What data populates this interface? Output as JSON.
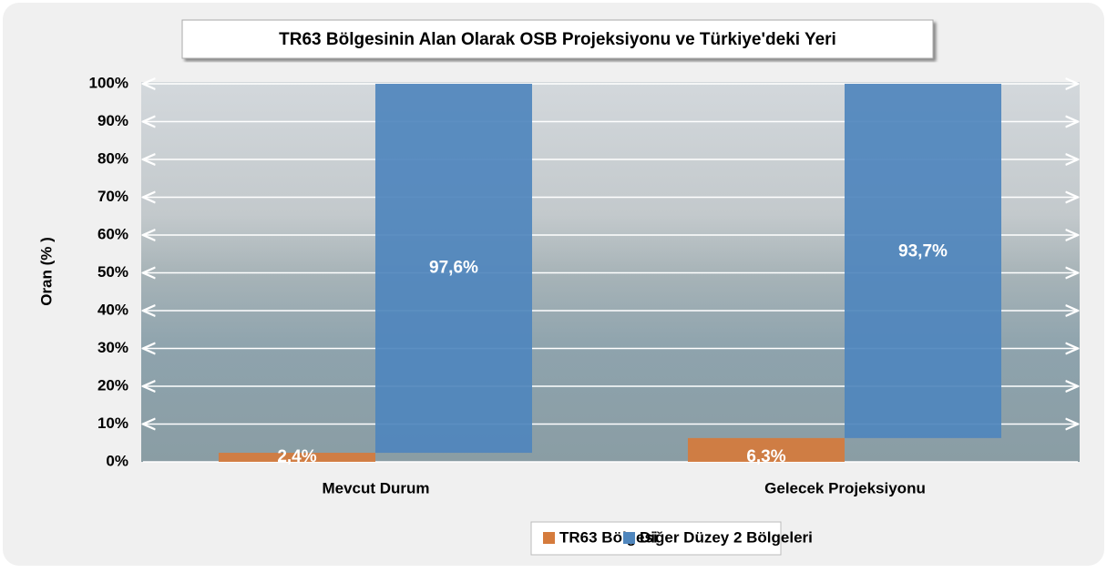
{
  "chart_data": {
    "type": "bar",
    "stacked": true,
    "title": "TR63 Bölgesinin Alan Olarak OSB Projeksiyonu ve Türkiye'deki Yeri",
    "y_label": "Oran (% )",
    "categories": [
      "Mevcut Durum",
      "Gelecek Projeksiyonu"
    ],
    "series": [
      {
        "name": "TR63 Bölgesi",
        "color": "#d57b3c",
        "values": [
          2.4,
          6.3
        ],
        "value_labels": [
          "2,4%",
          "6,3%"
        ]
      },
      {
        "name": "Diğer Düzey 2 Bölgeleri",
        "color": "#4f86bd",
        "values": [
          97.6,
          93.7
        ],
        "value_labels": [
          "97,6%",
          "93,7%"
        ]
      }
    ],
    "ylim": [
      0,
      100
    ],
    "yticks": [
      {
        "value": 0,
        "label": "0%"
      },
      {
        "value": 10,
        "label": "10%"
      },
      {
        "value": 20,
        "label": "20%"
      },
      {
        "value": 30,
        "label": "30%"
      },
      {
        "value": 40,
        "label": "40%"
      },
      {
        "value": 50,
        "label": "50%"
      },
      {
        "value": 60,
        "label": "60%"
      },
      {
        "value": 70,
        "label": "70%"
      },
      {
        "value": 80,
        "label": "80%"
      },
      {
        "value": 90,
        "label": "90%"
      },
      {
        "value": 100,
        "label": "100%"
      }
    ],
    "grid": true,
    "legend": "bottom"
  }
}
